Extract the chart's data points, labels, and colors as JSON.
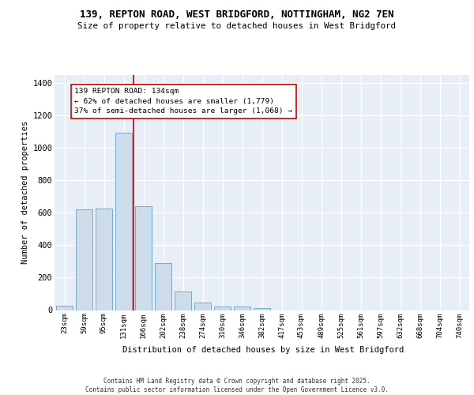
{
  "title": "139, REPTON ROAD, WEST BRIDGFORD, NOTTINGHAM, NG2 7EN",
  "subtitle": "Size of property relative to detached houses in West Bridgford",
  "xlabel": "Distribution of detached houses by size in West Bridgford",
  "ylabel": "Number of detached properties",
  "bar_color": "#ccdcea",
  "bar_edgecolor": "#7aaac8",
  "bar_linewidth": 0.7,
  "categories": [
    "23sqm",
    "59sqm",
    "95sqm",
    "131sqm",
    "166sqm",
    "202sqm",
    "238sqm",
    "274sqm",
    "310sqm",
    "346sqm",
    "382sqm",
    "417sqm",
    "453sqm",
    "489sqm",
    "525sqm",
    "561sqm",
    "597sqm",
    "632sqm",
    "668sqm",
    "704sqm",
    "740sqm"
  ],
  "values": [
    27,
    620,
    625,
    1095,
    640,
    290,
    115,
    46,
    22,
    20,
    12,
    0,
    0,
    0,
    0,
    0,
    0,
    0,
    0,
    0,
    0
  ],
  "ylim": [
    0,
    1450
  ],
  "yticks": [
    0,
    200,
    400,
    600,
    800,
    1000,
    1200,
    1400
  ],
  "red_line_x": 3.5,
  "annotation_text": "139 REPTON ROAD: 134sqm\n← 62% of detached houses are smaller (1,779)\n37% of semi-detached houses are larger (1,068) →",
  "background_color": "#e8eef5",
  "grid_color": "#ffffff",
  "footer_line1": "Contains HM Land Registry data © Crown copyright and database right 2025.",
  "footer_line2": "Contains public sector information licensed under the Open Government Licence v3.0."
}
